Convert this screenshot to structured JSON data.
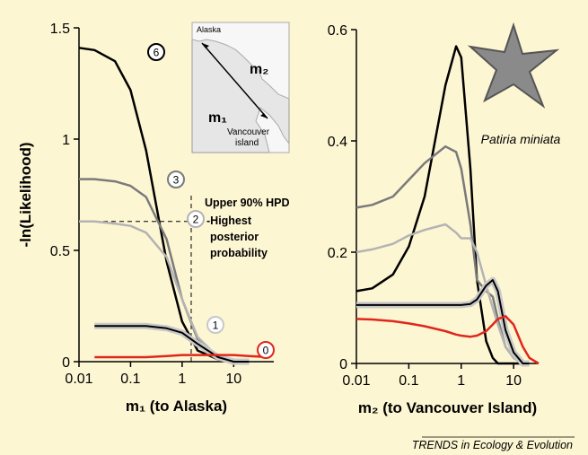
{
  "chart_data": [
    {
      "type": "line",
      "y_label": "-ln(Likelihood)",
      "x_label": "m₁ (to Alaska)",
      "xlog": true,
      "x": [
        0.01,
        0.02,
        0.05,
        0.1,
        0.2,
        0.5,
        1,
        2,
        5,
        10,
        20,
        50
      ],
      "xlim": [
        0.01,
        60
      ],
      "xticks": [
        0.01,
        0.1,
        1,
        10
      ],
      "ylim": [
        0,
        1.5
      ],
      "yticks": [
        0,
        0.5,
        1,
        1.5
      ],
      "series": [
        {
          "name": "6",
          "color": "#000000",
          "values": [
            1.41,
            1.4,
            1.35,
            1.22,
            0.95,
            0.45,
            0.18,
            0.05,
            0.01,
            0,
            0,
            null
          ]
        },
        {
          "name": "3",
          "color": "#7a7a7a",
          "values": [
            0.82,
            0.82,
            0.81,
            0.79,
            0.74,
            0.55,
            0.28,
            0.1,
            0.02,
            0,
            0,
            null
          ]
        },
        {
          "name": "2",
          "color": "#b3b3b3",
          "values": [
            0.63,
            0.63,
            0.62,
            0.61,
            0.58,
            0.47,
            0.28,
            0.11,
            0.02,
            0,
            0,
            null
          ]
        },
        {
          "name": "1",
          "color": "#000000",
          "halo": "#c8c8c8",
          "values": [
            null,
            0.16,
            0.16,
            0.16,
            0.16,
            0.15,
            0.13,
            0.08,
            0.02,
            0,
            0,
            null
          ]
        },
        {
          "name": "0",
          "color": "#e0261c",
          "values": [
            null,
            0.02,
            0.02,
            0.02,
            0.02,
            0.025,
            0.03,
            0.03,
            0.03,
            0.03,
            0.025,
            0.02
          ]
        }
      ],
      "hpd": {
        "x": 1.5,
        "y": 0.63,
        "label": "Upper 90% HPD",
        "note": [
          "-Highest",
          "posterior",
          "probability"
        ]
      }
    },
    {
      "type": "line",
      "x_label": "m₂ (to Vancouver Island)",
      "xlog": true,
      "x": [
        0.01,
        0.02,
        0.05,
        0.1,
        0.2,
        0.5,
        0.8,
        1,
        1.5,
        2,
        3,
        4,
        5,
        7,
        10,
        15,
        20,
        30
      ],
      "xlim": [
        0.01,
        30
      ],
      "xticks": [
        0.01,
        0.1,
        1,
        10
      ],
      "ylim": [
        0,
        0.6
      ],
      "yticks": [
        0,
        0.2,
        0.4,
        0.6
      ],
      "series": [
        {
          "color": "#000000",
          "values": [
            0.13,
            0.135,
            0.16,
            0.21,
            0.3,
            0.5,
            0.57,
            0.55,
            0.35,
            0.15,
            0.04,
            0.01,
            0,
            0,
            0,
            0,
            0,
            null
          ]
        },
        {
          "color": "#7a7a7a",
          "values": [
            0.28,
            0.285,
            0.3,
            0.33,
            0.36,
            0.39,
            0.38,
            0.35,
            0.25,
            0.15,
            0.13,
            0.12,
            0.08,
            0.03,
            0.01,
            0,
            0,
            null
          ]
        },
        {
          "color": "#b3b3b3",
          "values": [
            0.2,
            0.205,
            0.215,
            0.23,
            0.24,
            0.25,
            0.235,
            0.225,
            0.225,
            0.2,
            0.14,
            0.1,
            0.07,
            0.03,
            0.01,
            0,
            0,
            null
          ]
        },
        {
          "color": "#000000",
          "halo": "#c8c8c8",
          "values": [
            0.105,
            0.105,
            0.105,
            0.105,
            0.105,
            0.105,
            0.105,
            0.105,
            0.107,
            0.115,
            0.14,
            0.15,
            0.13,
            0.06,
            0.02,
            0,
            0,
            null
          ]
        },
        {
          "color": "#e0261c",
          "values": [
            0.08,
            0.079,
            0.076,
            0.072,
            0.067,
            0.058,
            0.052,
            0.05,
            0.048,
            0.05,
            0.058,
            0.07,
            0.08,
            0.085,
            0.07,
            0.03,
            0.01,
            0
          ]
        }
      ]
    }
  ],
  "map": {
    "labels": [
      "Alaska",
      "m₂",
      "m₁",
      "Vancouver",
      "island"
    ]
  },
  "species": "Patiria miniata",
  "footer": "TRENDS in Ecology & Evolution"
}
